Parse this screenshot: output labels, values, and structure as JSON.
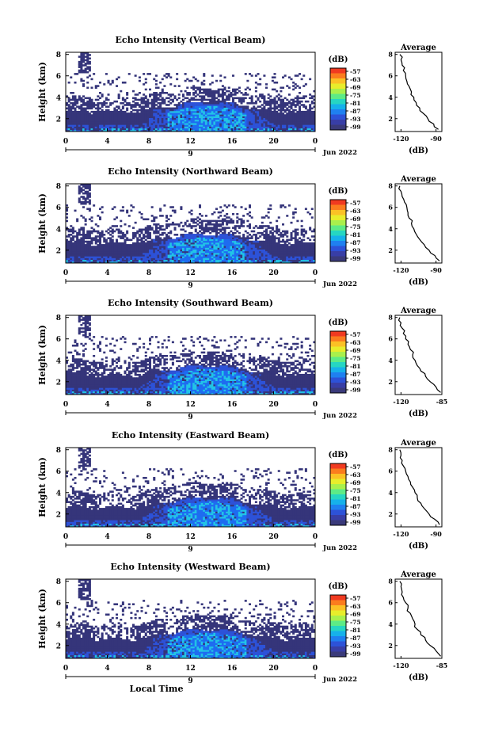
{
  "chart_data": [
    {
      "type": "heatmap",
      "title": "Echo Intensity (Vertical Beam)",
      "ylabel": "Height (km)",
      "xlabel": "",
      "x_ticks": [
        "0",
        "4",
        "8",
        "12",
        "16",
        "20",
        "0"
      ],
      "y_ticks": [
        "2",
        "4",
        "6",
        "8"
      ],
      "xlim": [
        0,
        24
      ],
      "ylim": [
        0.8,
        8.2
      ],
      "date_marker": "9",
      "date_label": "Jun 2022",
      "colorbar": {
        "unit": "(dB)",
        "ticks": [
          "-57",
          "-63",
          "-69",
          "-75",
          "-81",
          "-87",
          "-93",
          "-99"
        ]
      },
      "average": {
        "title": "Average",
        "xlabel": "(dB)",
        "x_ticks": [
          "-120",
          "-90"
        ],
        "xlim": [
          -125,
          -85
        ],
        "y_ticks": [
          "2",
          "4",
          "6",
          "8"
        ],
        "profile": [
          [
            -88,
            1
          ],
          [
            -92,
            1.5
          ],
          [
            -97,
            2
          ],
          [
            -101,
            2.5
          ],
          [
            -104,
            3
          ],
          [
            -107,
            3.5
          ],
          [
            -109,
            4
          ],
          [
            -111,
            4.5
          ],
          [
            -113,
            5
          ],
          [
            -115,
            5.5
          ],
          [
            -116,
            6
          ],
          [
            -118,
            6.5
          ],
          [
            -119,
            7
          ],
          [
            -120,
            7.5
          ],
          [
            -121,
            8
          ]
        ]
      }
    },
    {
      "type": "heatmap",
      "title": "Echo Intensity (Northward Beam)",
      "ylabel": "Height (km)",
      "xlabel": "",
      "x_ticks": [
        "0",
        "4",
        "8",
        "12",
        "16",
        "20",
        "0"
      ],
      "y_ticks": [
        "2",
        "4",
        "6",
        "8"
      ],
      "xlim": [
        0,
        24
      ],
      "ylim": [
        0.8,
        8.2
      ],
      "date_marker": "9",
      "date_label": "Jun 2022",
      "colorbar": {
        "unit": "(dB)",
        "ticks": [
          "-57",
          "-63",
          "-69",
          "-75",
          "-81",
          "-87",
          "-93",
          "-99"
        ]
      },
      "average": {
        "title": "Average",
        "xlabel": "(dB)",
        "x_ticks": [
          "-120",
          "-90"
        ],
        "xlim": [
          -125,
          -85
        ],
        "y_ticks": [
          "2",
          "4",
          "6",
          "8"
        ],
        "profile": [
          [
            -87,
            1
          ],
          [
            -91,
            1.5
          ],
          [
            -96,
            2
          ],
          [
            -100,
            2.5
          ],
          [
            -104,
            3
          ],
          [
            -107,
            3.5
          ],
          [
            -109,
            4
          ],
          [
            -111,
            4.5
          ],
          [
            -113,
            5
          ],
          [
            -114,
            5.5
          ],
          [
            -115,
            6
          ],
          [
            -117,
            6.5
          ],
          [
            -119,
            7
          ],
          [
            -120,
            7.5
          ],
          [
            -121,
            8
          ]
        ]
      }
    },
    {
      "type": "heatmap",
      "title": "Echo Intensity (Southward Beam)",
      "ylabel": "Height (km)",
      "xlabel": "",
      "x_ticks": [
        "0",
        "4",
        "8",
        "12",
        "16",
        "20",
        "0"
      ],
      "y_ticks": [
        "2",
        "4",
        "6",
        "8"
      ],
      "xlim": [
        0,
        24
      ],
      "ylim": [
        0.8,
        8.2
      ],
      "date_marker": "9",
      "date_label": "Jun 2022",
      "colorbar": {
        "unit": "(dB)",
        "ticks": [
          "-57",
          "-63",
          "-69",
          "-75",
          "-81",
          "-87",
          "-93",
          "-99"
        ]
      },
      "average": {
        "title": "Average",
        "xlabel": "(dB)",
        "x_ticks": [
          "-120",
          "-85"
        ],
        "xlim": [
          -125,
          -85
        ],
        "y_ticks": [
          "2",
          "4",
          "6",
          "8"
        ],
        "profile": [
          [
            -86,
            1
          ],
          [
            -90,
            1.5
          ],
          [
            -95,
            2
          ],
          [
            -99,
            2.5
          ],
          [
            -103,
            3
          ],
          [
            -106,
            3.5
          ],
          [
            -108,
            4
          ],
          [
            -110,
            4.5
          ],
          [
            -112,
            5
          ],
          [
            -114,
            5.5
          ],
          [
            -116,
            6
          ],
          [
            -118,
            6.5
          ],
          [
            -119,
            7
          ],
          [
            -120,
            7.5
          ],
          [
            -121,
            8
          ]
        ]
      }
    },
    {
      "type": "heatmap",
      "title": "Echo Intensity (Eastward Beam)",
      "ylabel": "Height (km)",
      "xlabel": "",
      "x_ticks": [
        "0",
        "4",
        "8",
        "12",
        "16",
        "20",
        "0"
      ],
      "y_ticks": [
        "2",
        "4",
        "6",
        "8"
      ],
      "xlim": [
        0,
        24
      ],
      "ylim": [
        0.8,
        8.2
      ],
      "date_marker": "9",
      "date_label": "Jun 2022",
      "colorbar": {
        "unit": "(dB)",
        "ticks": [
          "-57",
          "-63",
          "-69",
          "-75",
          "-81",
          "-87",
          "-93",
          "-99"
        ]
      },
      "average": {
        "title": "Average",
        "xlabel": "(dB)",
        "x_ticks": [
          "-120",
          "-90"
        ],
        "xlim": [
          -125,
          -85
        ],
        "y_ticks": [
          "2",
          "4",
          "6",
          "8"
        ],
        "profile": [
          [
            -87,
            1
          ],
          [
            -91,
            1.5
          ],
          [
            -96,
            2
          ],
          [
            -100,
            2.5
          ],
          [
            -103,
            3
          ],
          [
            -106,
            3.5
          ],
          [
            -108,
            4
          ],
          [
            -110,
            4.5
          ],
          [
            -112,
            5
          ],
          [
            -114,
            5.5
          ],
          [
            -116,
            6
          ],
          [
            -118,
            6.5
          ],
          [
            -119,
            7
          ],
          [
            -120,
            7.5
          ],
          [
            -121,
            8
          ]
        ]
      }
    },
    {
      "type": "heatmap",
      "title": "Echo Intensity (Westward Beam)",
      "ylabel": "Height (km)",
      "xlabel": "Local Time",
      "x_ticks": [
        "0",
        "4",
        "8",
        "12",
        "16",
        "20",
        "0"
      ],
      "y_ticks": [
        "2",
        "4",
        "6",
        "8"
      ],
      "xlim": [
        0,
        24
      ],
      "ylim": [
        0.8,
        8.2
      ],
      "date_marker": "9",
      "date_label": "Jun 2022",
      "colorbar": {
        "unit": "(dB)",
        "ticks": [
          "-57",
          "-63",
          "-69",
          "-75",
          "-81",
          "-87",
          "-93",
          "-99"
        ]
      },
      "average": {
        "title": "Average",
        "xlabel": "(dB)",
        "x_ticks": [
          "-120",
          "-85"
        ],
        "xlim": [
          -125,
          -85
        ],
        "y_ticks": [
          "2",
          "4",
          "6",
          "8"
        ],
        "profile": [
          [
            -86,
            1
          ],
          [
            -90,
            1.5
          ],
          [
            -95,
            2
          ],
          [
            -99,
            2.5
          ],
          [
            -103,
            3
          ],
          [
            -106,
            3.5
          ],
          [
            -108,
            4
          ],
          [
            -110,
            4.5
          ],
          [
            -112,
            5
          ],
          [
            -114,
            5.5
          ],
          [
            -116,
            6
          ],
          [
            -118,
            6.5
          ],
          [
            -119,
            7
          ],
          [
            -120,
            7.5
          ],
          [
            -121,
            8
          ]
        ]
      }
    }
  ],
  "colors": {
    "colorbar_scale": [
      "#f03a20",
      "#fb7c1e",
      "#fbc125",
      "#e8ed2b",
      "#a9f04c",
      "#5deb86",
      "#26d6c2",
      "#16b1ea",
      "#1f80f0",
      "#2d52d8",
      "#383ea6",
      "#3a3a7a"
    ],
    "background_fill": "#35357a",
    "strong_echo": "#1e6cf0",
    "peak_echo": "#22c4e6"
  }
}
